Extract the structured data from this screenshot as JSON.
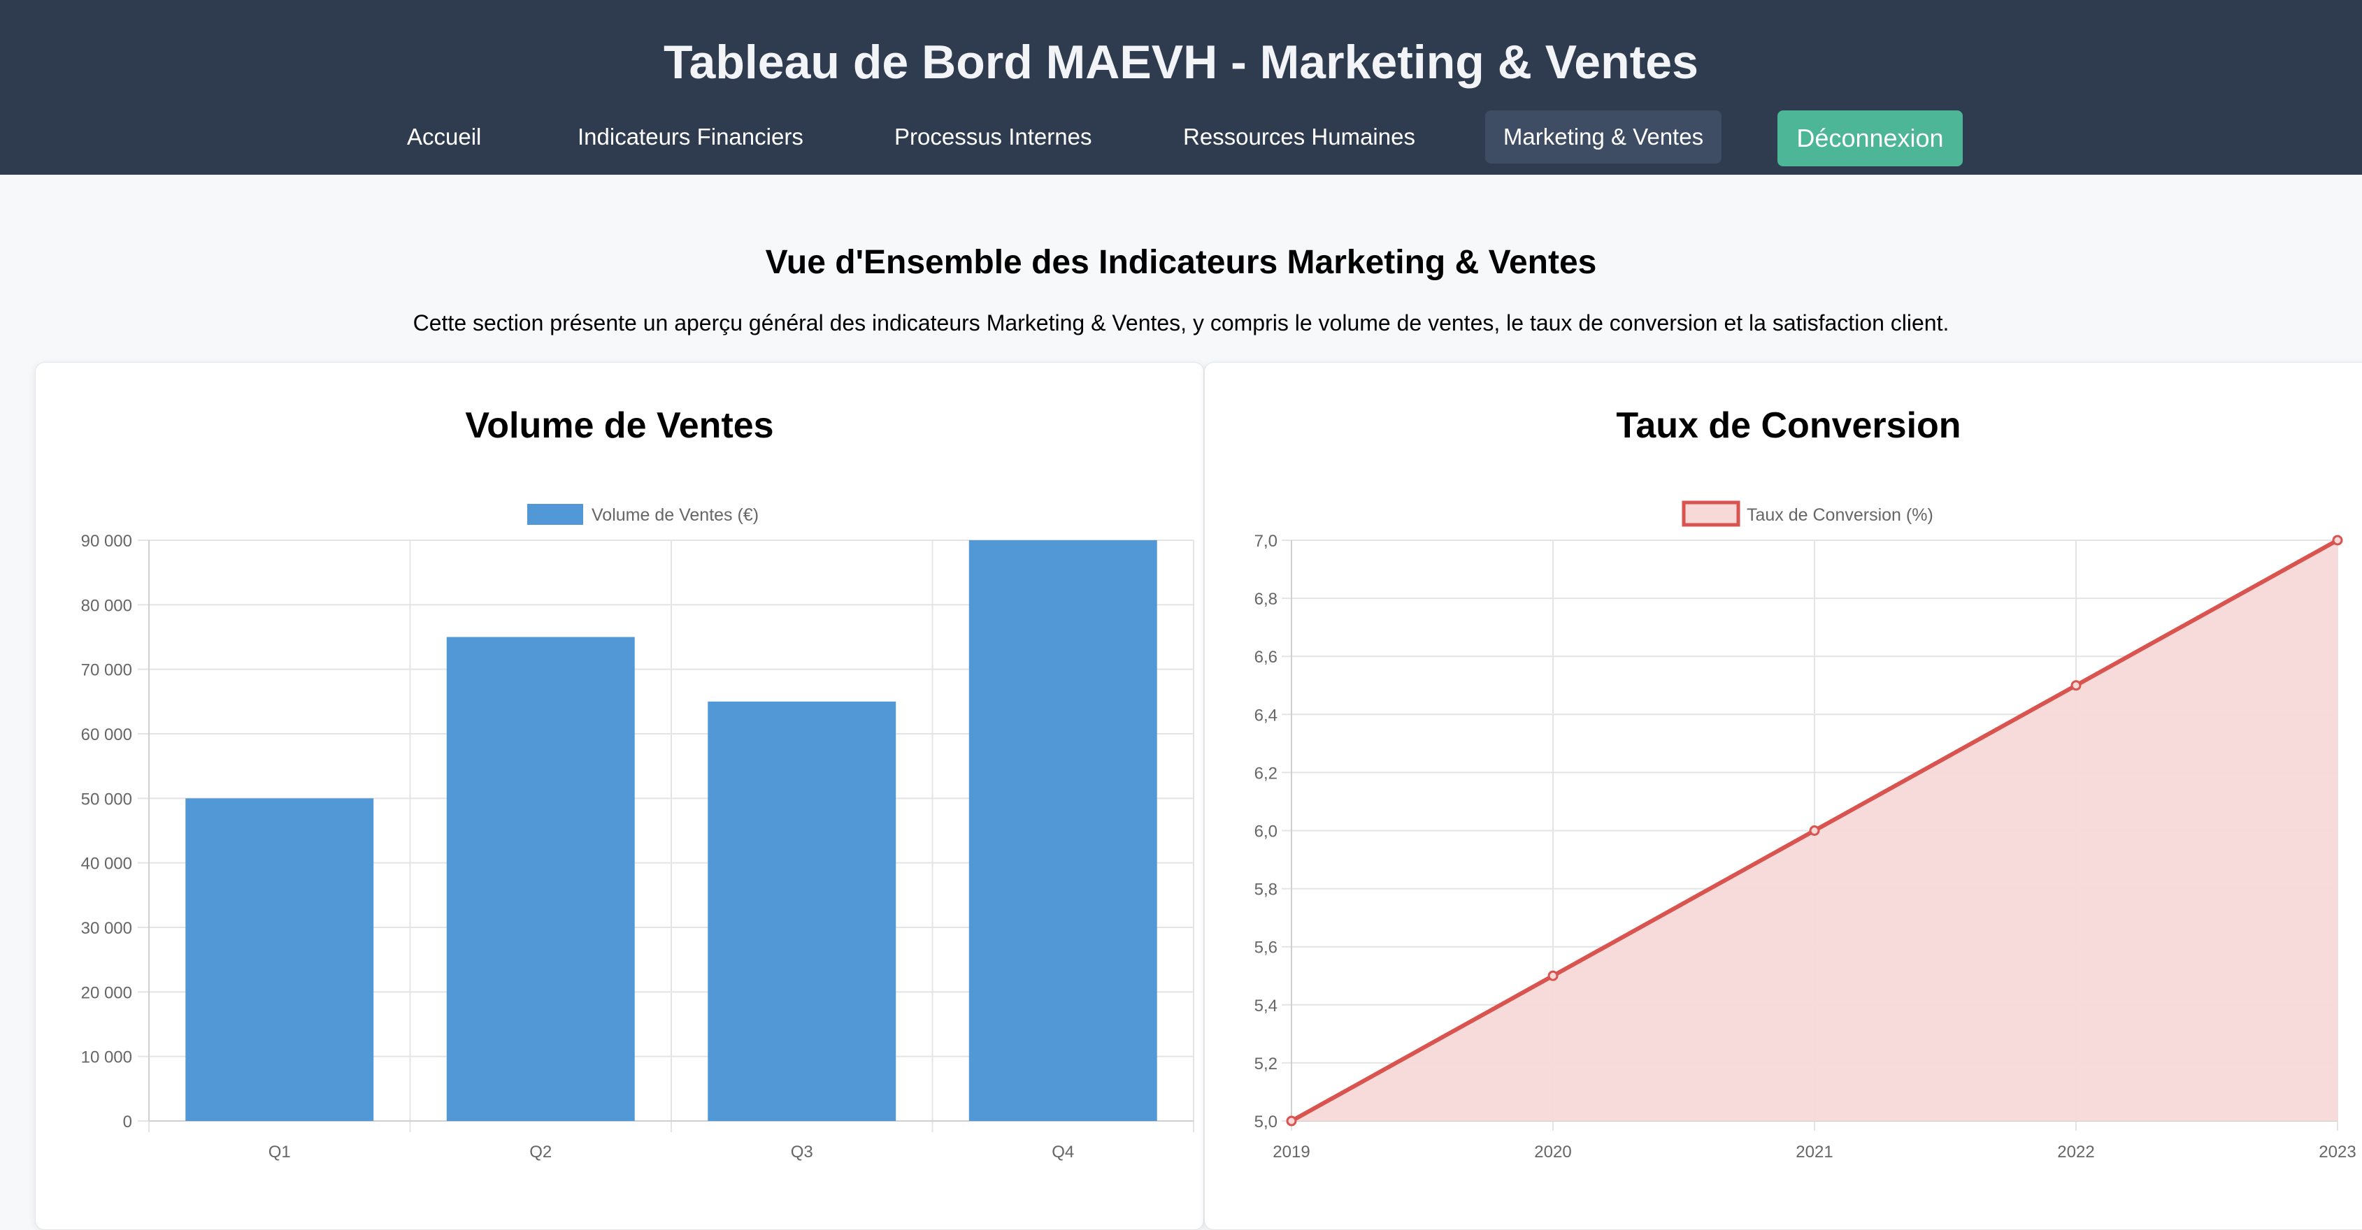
{
  "header": {
    "title": "Tableau de Bord MAEVH - Marketing & Ventes",
    "nav": [
      {
        "label": "Accueil",
        "active": false
      },
      {
        "label": "Indicateurs Financiers",
        "active": false
      },
      {
        "label": "Processus Internes",
        "active": false
      },
      {
        "label": "Ressources Humaines",
        "active": false
      },
      {
        "label": "Marketing & Ventes",
        "active": true
      }
    ],
    "logout_label": "Déconnexion"
  },
  "section": {
    "title": "Vue d'Ensemble des Indicateurs Marketing & Ventes",
    "description": "Cette section présente un aperçu général des indicateurs Marketing & Ventes, y compris le volume de ventes, le taux de conversion et la satisfaction client."
  },
  "cards": {
    "sales_title": "Volume de Ventes",
    "conversion_title": "Taux de Conversion"
  },
  "colors": {
    "header_bg": "#2f3c4f",
    "logout_bg": "#4cb696",
    "bar": "#5297d6",
    "line": "#d9534f",
    "line_fill": "#f7d9d8"
  },
  "chart_data": [
    {
      "type": "bar",
      "title": "Volume de Ventes",
      "categories": [
        "Q1",
        "Q2",
        "Q3",
        "Q4"
      ],
      "series": [
        {
          "name": "Volume de Ventes (€)",
          "values": [
            50000,
            75000,
            65000,
            90000
          ]
        }
      ],
      "ylim": [
        0,
        90000
      ],
      "yticks": [
        "0",
        "10 000",
        "20 000",
        "30 000",
        "40 000",
        "50 000",
        "60 000",
        "70 000",
        "80 000",
        "90 000"
      ],
      "grid": true,
      "legend": "top-center"
    },
    {
      "type": "area",
      "title": "Taux de Conversion",
      "x": [
        "2019",
        "2020",
        "2021",
        "2022",
        "2023"
      ],
      "series": [
        {
          "name": "Taux de Conversion (%)",
          "values": [
            5.0,
            5.5,
            6.0,
            6.5,
            7.0
          ]
        }
      ],
      "ylim": [
        5.0,
        7.0
      ],
      "yticks": [
        "5,0",
        "5,2",
        "5,4",
        "5,6",
        "5,8",
        "6,0",
        "6,2",
        "6,4",
        "6,6",
        "6,8",
        "7,0"
      ],
      "grid": true,
      "legend": "top-center"
    }
  ]
}
